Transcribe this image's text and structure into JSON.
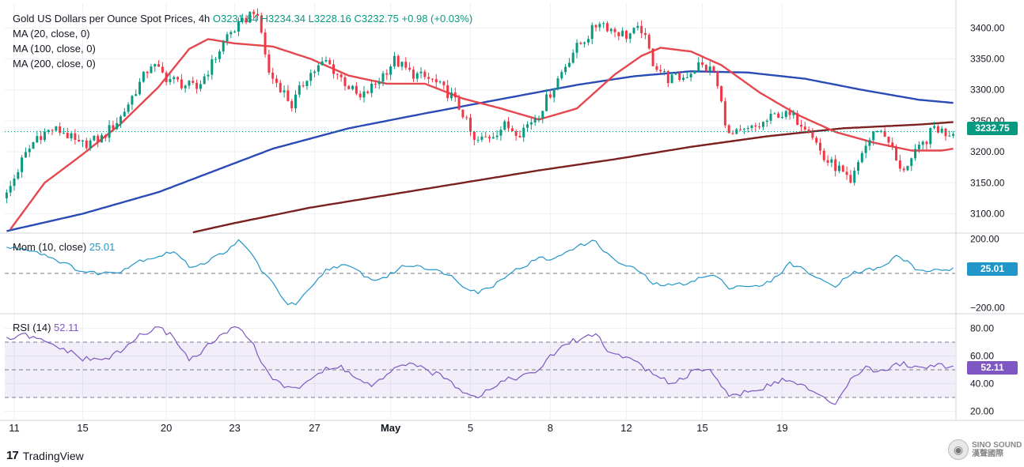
{
  "legend": {
    "title": "Gold US Dollars per Ounce Spot Prices, 4h",
    "open": "O3231.84",
    "high": "H3234.34",
    "low": "L3228.16",
    "close": "C3232.75",
    "change": "+0.98 (+0.03%)",
    "ma20": "MA (20, close, 0)",
    "ma100": "MA (100, close, 0)",
    "ma200": "MA (200, close, 0)"
  },
  "momentum": {
    "label": "Mom (10, close)",
    "value": "25.01",
    "tag": "25.01"
  },
  "rsi": {
    "label": "RSI (14)",
    "value": "52.11",
    "tag": "52.11"
  },
  "price_tag": "3232.75",
  "brand": {
    "name": "TradingView",
    "watermark": "SINO SOUND",
    "watermark_sub": "漢聲國際",
    "icon": "tradingview-logo-icon"
  },
  "colors": {
    "up": "#089981",
    "down": "#f23645",
    "ma20": "#e5474f",
    "ma100": "#2a4bb6",
    "ma200": "#7b1f1f",
    "mom": "#2196c8",
    "rsi": "#7e57c2",
    "grid": "#eef0f3"
  },
  "chart_data": [
    {
      "type": "candlestick",
      "title": "Gold US Dollars per Ounce Spot Prices, 4h",
      "x_ticks": [
        "11",
        "15",
        "20",
        "23",
        "27",
        "May",
        "5",
        "8",
        "12",
        "15",
        "19"
      ],
      "y_ticks": [
        "3100.00",
        "3150.00",
        "3200.00",
        "3250.00",
        "3300.00",
        "3350.00",
        "3400.00"
      ],
      "ylim": [
        3070,
        3440
      ],
      "close_anchors": [
        [
          0,
          3130
        ],
        [
          4,
          3185
        ],
        [
          8,
          3225
        ],
        [
          12,
          3236
        ],
        [
          15,
          3232
        ],
        [
          19,
          3210
        ],
        [
          25,
          3222
        ],
        [
          30,
          3256
        ],
        [
          34,
          3300
        ],
        [
          38,
          3342
        ],
        [
          42,
          3320
        ],
        [
          46,
          3310
        ],
        [
          50,
          3302
        ],
        [
          54,
          3342
        ],
        [
          58,
          3388
        ],
        [
          62,
          3408
        ],
        [
          65,
          3430
        ],
        [
          67,
          3392
        ],
        [
          69,
          3326
        ],
        [
          72,
          3305
        ],
        [
          75,
          3275
        ],
        [
          79,
          3322
        ],
        [
          84,
          3346
        ],
        [
          89,
          3312
        ],
        [
          93,
          3285
        ],
        [
          97,
          3310
        ],
        [
          102,
          3348
        ],
        [
          106,
          3328
        ],
        [
          112,
          3315
        ],
        [
          117,
          3290
        ],
        [
          120,
          3262
        ],
        [
          123,
          3215
        ],
        [
          127,
          3225
        ],
        [
          131,
          3242
        ],
        [
          135,
          3232
        ],
        [
          140,
          3262
        ],
        [
          145,
          3318
        ],
        [
          149,
          3362
        ],
        [
          153,
          3388
        ],
        [
          156,
          3412
        ],
        [
          159,
          3398
        ],
        [
          163,
          3388
        ],
        [
          167,
          3398
        ],
        [
          170,
          3345
        ],
        [
          174,
          3318
        ],
        [
          178,
          3320
        ],
        [
          182,
          3340
        ],
        [
          186,
          3330
        ],
        [
          190,
          3225
        ],
        [
          194,
          3232
        ],
        [
          198,
          3242
        ],
        [
          203,
          3262
        ],
        [
          207,
          3255
        ],
        [
          211,
          3240
        ],
        [
          215,
          3188
        ],
        [
          219,
          3172
        ],
        [
          222,
          3145
        ],
        [
          225,
          3200
        ],
        [
          229,
          3238
        ],
        [
          232,
          3220
        ],
        [
          235,
          3168
        ],
        [
          238,
          3188
        ],
        [
          242,
          3220
        ],
        [
          244,
          3240
        ],
        [
          247,
          3230
        ],
        [
          249,
          3233
        ]
      ],
      "ma20_points": [
        [
          1,
          3075
        ],
        [
          10,
          3150
        ],
        [
          20,
          3196
        ],
        [
          30,
          3245
        ],
        [
          40,
          3305
        ],
        [
          48,
          3366
        ],
        [
          53,
          3382
        ],
        [
          60,
          3375
        ],
        [
          70,
          3370
        ],
        [
          80,
          3350
        ],
        [
          90,
          3323
        ],
        [
          100,
          3310
        ],
        [
          110,
          3310
        ],
        [
          120,
          3286
        ],
        [
          130,
          3270
        ],
        [
          140,
          3252
        ],
        [
          150,
          3270
        ],
        [
          160,
          3325
        ],
        [
          167,
          3355
        ],
        [
          172,
          3368
        ],
        [
          180,
          3362
        ],
        [
          188,
          3340
        ],
        [
          198,
          3296
        ],
        [
          208,
          3260
        ],
        [
          218,
          3232
        ],
        [
          228,
          3215
        ],
        [
          238,
          3202
        ],
        [
          246,
          3202
        ],
        [
          249,
          3205
        ]
      ],
      "ma100_points": [
        [
          0,
          3072
        ],
        [
          20,
          3100
        ],
        [
          40,
          3135
        ],
        [
          55,
          3170
        ],
        [
          70,
          3205
        ],
        [
          90,
          3238
        ],
        [
          110,
          3262
        ],
        [
          130,
          3285
        ],
        [
          150,
          3308
        ],
        [
          165,
          3322
        ],
        [
          180,
          3330
        ],
        [
          195,
          3328
        ],
        [
          210,
          3318
        ],
        [
          225,
          3300
        ],
        [
          240,
          3284
        ],
        [
          249,
          3279
        ]
      ],
      "ma200_points": [
        [
          49,
          3070
        ],
        [
          60,
          3085
        ],
        [
          80,
          3110
        ],
        [
          100,
          3130
        ],
        [
          120,
          3150
        ],
        [
          140,
          3170
        ],
        [
          160,
          3188
        ],
        [
          180,
          3208
        ],
        [
          200,
          3225
        ],
        [
          220,
          3238
        ],
        [
          240,
          3244
        ],
        [
          249,
          3248
        ]
      ]
    },
    {
      "type": "line",
      "title": "Mom (10, close)",
      "y_ticks": [
        "200.00",
        "−200.00"
      ],
      "ylim": [
        -230,
        230
      ],
      "anchors": [
        [
          0,
          150
        ],
        [
          6,
          140
        ],
        [
          10,
          110
        ],
        [
          15,
          60
        ],
        [
          20,
          10
        ],
        [
          25,
          0
        ],
        [
          30,
          15
        ],
        [
          35,
          75
        ],
        [
          40,
          100
        ],
        [
          44,
          130
        ],
        [
          48,
          40
        ],
        [
          52,
          60
        ],
        [
          56,
          110
        ],
        [
          60,
          160
        ],
        [
          61,
          190
        ],
        [
          64,
          130
        ],
        [
          67,
          20
        ],
        [
          70,
          -60
        ],
        [
          74,
          -180
        ],
        [
          76,
          -180
        ],
        [
          80,
          -90
        ],
        [
          84,
          20
        ],
        [
          88,
          50
        ],
        [
          92,
          20
        ],
        [
          96,
          -40
        ],
        [
          100,
          -20
        ],
        [
          104,
          40
        ],
        [
          108,
          50
        ],
        [
          112,
          20
        ],
        [
          116,
          0
        ],
        [
          120,
          -70
        ],
        [
          124,
          -110
        ],
        [
          128,
          -70
        ],
        [
          132,
          0
        ],
        [
          136,
          40
        ],
        [
          140,
          90
        ],
        [
          144,
          80
        ],
        [
          148,
          140
        ],
        [
          152,
          170
        ],
        [
          155,
          190
        ],
        [
          158,
          110
        ],
        [
          162,
          50
        ],
        [
          166,
          20
        ],
        [
          170,
          -60
        ],
        [
          174,
          -70
        ],
        [
          178,
          -60
        ],
        [
          182,
          -30
        ],
        [
          186,
          -10
        ],
        [
          190,
          -80
        ],
        [
          194,
          -70
        ],
        [
          198,
          -80
        ],
        [
          202,
          -30
        ],
        [
          206,
          60
        ],
        [
          210,
          20
        ],
        [
          214,
          -40
        ],
        [
          218,
          -70
        ],
        [
          222,
          0
        ],
        [
          226,
          20
        ],
        [
          230,
          30
        ],
        [
          234,
          100
        ],
        [
          237,
          70
        ],
        [
          240,
          10
        ],
        [
          244,
          20
        ],
        [
          249,
          25
        ]
      ]
    },
    {
      "type": "line",
      "title": "RSI (14)",
      "y_ticks": [
        "20.00",
        "40.00",
        "60.00",
        "80.00"
      ],
      "ylim": [
        14,
        90
      ],
      "anchors": [
        [
          0,
          72
        ],
        [
          5,
          75
        ],
        [
          10,
          70
        ],
        [
          15,
          65
        ],
        [
          20,
          58
        ],
        [
          25,
          57
        ],
        [
          30,
          63
        ],
        [
          35,
          75
        ],
        [
          40,
          80
        ],
        [
          44,
          74
        ],
        [
          48,
          57
        ],
        [
          52,
          65
        ],
        [
          56,
          74
        ],
        [
          60,
          80
        ],
        [
          61,
          82
        ],
        [
          64,
          72
        ],
        [
          67,
          56
        ],
        [
          70,
          44
        ],
        [
          74,
          36
        ],
        [
          77,
          38
        ],
        [
          80,
          44
        ],
        [
          84,
          50
        ],
        [
          88,
          52
        ],
        [
          92,
          44
        ],
        [
          96,
          38
        ],
        [
          100,
          45
        ],
        [
          104,
          55
        ],
        [
          108,
          52
        ],
        [
          112,
          48
        ],
        [
          116,
          43
        ],
        [
          120,
          35
        ],
        [
          124,
          31
        ],
        [
          128,
          38
        ],
        [
          132,
          44
        ],
        [
          136,
          45
        ],
        [
          140,
          50
        ],
        [
          144,
          62
        ],
        [
          148,
          70
        ],
        [
          152,
          73
        ],
        [
          155,
          77
        ],
        [
          158,
          63
        ],
        [
          162,
          60
        ],
        [
          166,
          56
        ],
        [
          170,
          46
        ],
        [
          174,
          41
        ],
        [
          178,
          44
        ],
        [
          182,
          52
        ],
        [
          186,
          48
        ],
        [
          190,
          30
        ],
        [
          194,
          34
        ],
        [
          198,
          35
        ],
        [
          202,
          42
        ],
        [
          206,
          42
        ],
        [
          210,
          38
        ],
        [
          214,
          30
        ],
        [
          218,
          26
        ],
        [
          222,
          44
        ],
        [
          226,
          52
        ],
        [
          230,
          48
        ],
        [
          234,
          55
        ],
        [
          237,
          54
        ],
        [
          240,
          51
        ],
        [
          244,
          54
        ],
        [
          249,
          52
        ]
      ]
    }
  ]
}
